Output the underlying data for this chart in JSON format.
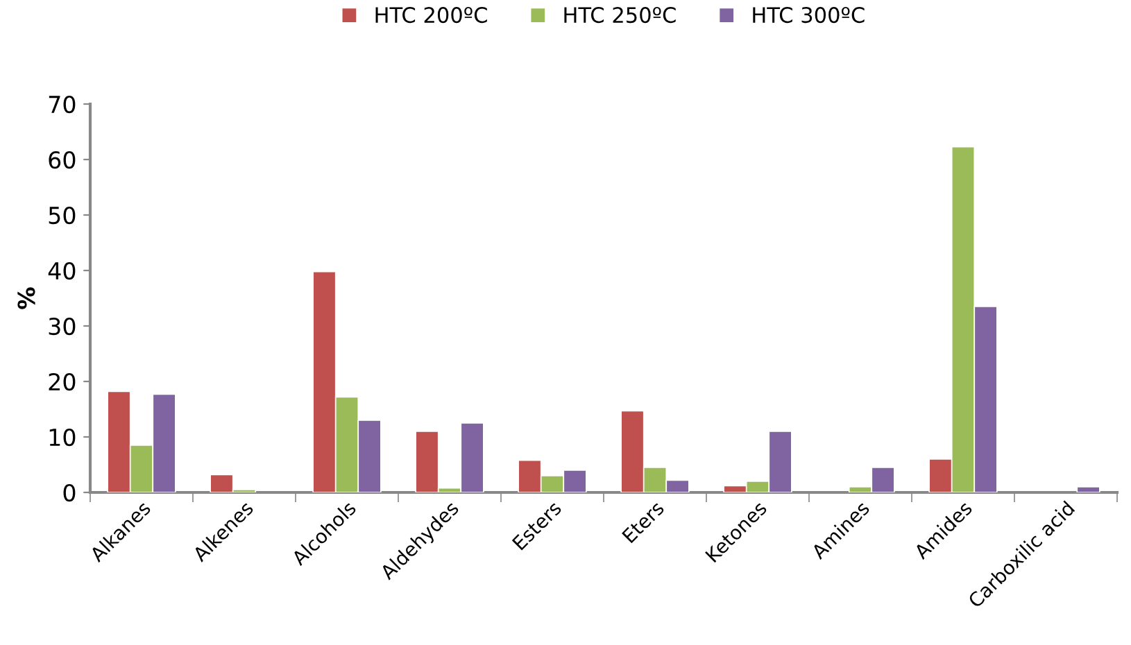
{
  "chart_data": {
    "type": "bar",
    "ylabel": "%",
    "categories": [
      "Alkanes",
      "Alkenes",
      "Alcohols",
      "Aldehydes",
      "Esters",
      "Eters",
      "Ketones",
      "Amines",
      "Amides",
      "Carboxilic acid"
    ],
    "series": [
      {
        "name": "HTC 200ºC",
        "color": "#c0504d",
        "values": [
          18.2,
          3.2,
          39.8,
          11,
          5.8,
          14.7,
          1.2,
          null,
          6,
          null
        ]
      },
      {
        "name": "HTC 250ºC",
        "color": "#9bbb59",
        "values": [
          8.5,
          0.5,
          17.2,
          0.8,
          3,
          4.5,
          2,
          1,
          62.3,
          null
        ]
      },
      {
        "name": "HTC 300ºC",
        "color": "#8064a2",
        "values": [
          17.7,
          null,
          13,
          12.5,
          4,
          2.2,
          11,
          4.5,
          33.5,
          1
        ]
      }
    ],
    "ylim": [
      0,
      70
    ],
    "yticks": [
      0,
      10,
      20,
      30,
      40,
      50,
      60,
      70
    ],
    "grid": false,
    "legend": "top"
  }
}
